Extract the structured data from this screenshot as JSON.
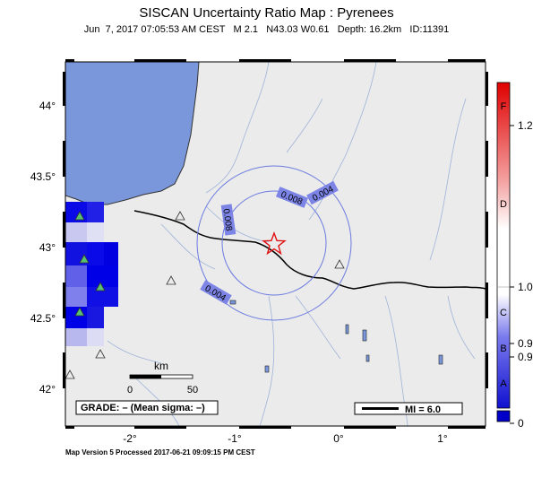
{
  "title": "SISCAN Uncertainty Ratio Map : Pyrenees",
  "subtitle": {
    "date": "Jun  7, 2017 07:05:53 AM CEST",
    "magnitude": "M 2.1",
    "location": "N43.03 W0.61",
    "depth": "Depth: 16.2km",
    "id": "ID:11391"
  },
  "axes": {
    "lat_ticks": [
      "44°",
      "43.5°",
      "43°",
      "42.5°",
      "42°"
    ],
    "lon_ticks": [
      "-2°",
      "-1°",
      "0°",
      "1°"
    ]
  },
  "contours": [
    "0.004",
    "0.008",
    "0.008",
    "0.004"
  ],
  "scale_bar": {
    "unit": "km",
    "start": "0",
    "end": "50"
  },
  "grade_box": "GRADE: – (Mean sigma: –)",
  "mi_legend": "MI = 6.0",
  "colorbar": {
    "letters": [
      "F",
      "D",
      "C",
      "B",
      "A"
    ],
    "values": [
      "1.2",
      "1.0",
      "0.9",
      "0.9",
      "0"
    ]
  },
  "footer": "Map Version 5 Processed 2017-06-21 09:09:15 PM CEST",
  "colors": {
    "sea": "#7b97db",
    "land": "#ebebeb",
    "grid_high": "#0000e6",
    "contour": "#6a7ae0",
    "epicenter": "#e01010"
  }
}
